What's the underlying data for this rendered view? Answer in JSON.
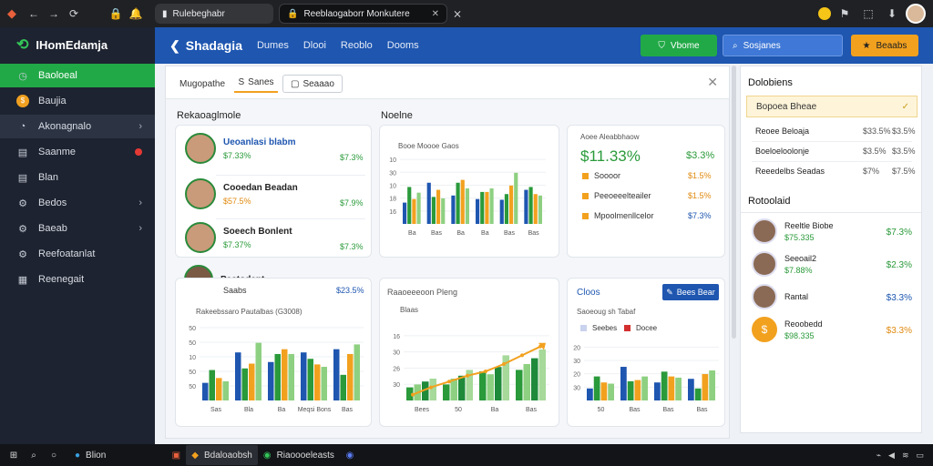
{
  "browser": {
    "tab1_title": "Rulebeghabr",
    "tab2_title": "Reeblaogaborr Monkutere",
    "icons": [
      "back-arrow-icon",
      "forward-arrow-icon",
      "refresh-icon",
      "lock-icon",
      "notification-icon",
      "extension-icon",
      "profile-icon"
    ]
  },
  "sidebar": {
    "brand": "IHomEdamja",
    "items": [
      {
        "label": "Baoloeal",
        "icon": "clock-icon",
        "active": true
      },
      {
        "label": "Baujia",
        "icon": "coin-icon"
      },
      {
        "label": "Akonagnalo",
        "icon": "chart-icon",
        "chevron": true
      },
      {
        "label": "Saanme",
        "icon": "doc-icon",
        "badge": true
      },
      {
        "label": "Blan",
        "icon": "doc-icon"
      },
      {
        "label": "Bedos",
        "icon": "gear-icon",
        "chevron": true
      },
      {
        "label": "Baeab",
        "icon": "gear-icon",
        "chevron": true
      },
      {
        "label": "Reefoatanlat",
        "icon": "gear-icon"
      },
      {
        "label": "Reenegait",
        "icon": "grid-icon"
      }
    ]
  },
  "appbar": {
    "title": "Shadagia",
    "nav": [
      "Dumes",
      "Dlooi",
      "Reoblo",
      "Dooms"
    ],
    "green_button": "Vbome",
    "blue_button": "Sosjanes",
    "orange_button": "Beaabs"
  },
  "filters": {
    "chip1": "Mugopathe",
    "chip2": "Sanes",
    "chip3": "Seaaao"
  },
  "sections": {
    "left_title": "Rekaoaglmole",
    "mid_title": "Noelne"
  },
  "people_card": [
    {
      "name": "Ueoanlasi blabm",
      "sub": "$7.33%",
      "value": "$7.3%"
    },
    {
      "name": "Cooedan Beadan",
      "sub": "$57.5%",
      "value": "$7.9%"
    },
    {
      "name": "Soeech Bonlent",
      "sub": "$7.37%",
      "value": "$7.3%"
    }
  ],
  "bar_card_top": {
    "caption": "Booe Moooe Gaos",
    "ylabels": [
      "16",
      "18",
      "10",
      "30",
      "10"
    ],
    "xlabels": [
      "Ba",
      "Bas",
      "Ba",
      "Ba",
      "Bas",
      "Bas"
    ]
  },
  "stat_card": {
    "caption": "Aoee Aleabbhaow",
    "headline": "$11.33%",
    "headline_side": "$3.3%",
    "rows": [
      {
        "label": "Soooor",
        "value": "$1.5%",
        "color": "#f2a11f"
      },
      {
        "label": "Peeoeeelteailer",
        "value": "$1.5%",
        "color": "#f2a11f"
      },
      {
        "label": "Mpoolmenllcelor",
        "value": "$7.3%",
        "color": "#f2a11f"
      }
    ]
  },
  "bottom_left": {
    "person_name": "Peatodent",
    "person_sub": "Saabs",
    "person_value": "$23.5%",
    "caption": "Rakeebssaro Pautalbas (G3008)",
    "ylabels": [
      "50",
      "50",
      "10",
      "50",
      "50"
    ],
    "xlabels": [
      "Sas",
      "Bla",
      "Ba",
      "Meqsi Bons",
      "Bas"
    ]
  },
  "bottom_mid": {
    "caption": "Raaoeeeoon Pleng",
    "sub": "Blaas",
    "ylabels": [
      "30",
      "26",
      "30",
      "16"
    ],
    "xlabels": [
      "Bees",
      "50",
      "Ba",
      "Bas"
    ]
  },
  "bottom_right": {
    "caption": "Cloos",
    "button": "Bees Bear",
    "sub": "Saoeoug sh Tabaf",
    "legend": [
      "Seebes",
      "Docee"
    ],
    "ylabels": [
      "30",
      "20",
      "30",
      "20"
    ],
    "xlabels": [
      "50",
      "Bas",
      "Bas",
      "Bas"
    ]
  },
  "right_panel": {
    "title": "Dolobiens",
    "highlight": "Bopoea Bheae",
    "rows": [
      {
        "label": "Reoee Beloaja",
        "a": "$33.5%",
        "b": "$3.5%"
      },
      {
        "label": "Boeloeloolonje",
        "a": "$3.5%",
        "b": "$3.5%"
      },
      {
        "label": "Reeedelbs Seadas",
        "a": "$7%",
        "b": "$7.5%"
      }
    ],
    "people_title": "Rotoolaid",
    "people": [
      {
        "name": "Reeltle Biobe",
        "sub": "$75.335",
        "value": "$7.3%",
        "color": "#2a9a3a"
      },
      {
        "name": "Seeoail2",
        "sub": "$7.88%",
        "value": "$2.3%",
        "color": "#2a9a3a"
      },
      {
        "name": "Rantal",
        "sub": "",
        "value": "$3.3%",
        "color": "#1e56b0"
      },
      {
        "name": "Reoobedd",
        "sub": "$98.335",
        "value": "$3.3%",
        "color": "#e08a10"
      }
    ]
  },
  "taskbar": {
    "item1": "Blion",
    "item2": "Bdaloaobsh",
    "item3": "Riaoooeleasts"
  },
  "chart_data": [
    {
      "type": "bar",
      "title": "Booe Moooe Gaos",
      "categories": [
        "Ba",
        "Bas",
        "Ba",
        "Ba",
        "Bas",
        "Bas"
      ],
      "ylim": [
        0,
        100
      ],
      "series": [
        {
          "values": [
            30,
            58,
            40,
            35,
            34,
            48
          ]
        },
        {
          "values": [
            52,
            38,
            58,
            45,
            42,
            52
          ]
        },
        {
          "values": [
            35,
            48,
            62,
            45,
            54,
            42
          ]
        },
        {
          "values": [
            44,
            36,
            50,
            50,
            72,
            40
          ]
        }
      ],
      "colors": [
        "#1e56b0",
        "#2a9a3a",
        "#f2a11f",
        "#8ed081"
      ]
    },
    {
      "type": "bar",
      "title": "Rakeebssaro Pautalbas (G3008)",
      "categories": [
        "Sas",
        "Bla",
        "Ba",
        "Meqsi Bons",
        "Bas"
      ],
      "ylim": [
        0,
        100
      ],
      "series": [
        {
          "values": [
            22,
            60,
            48,
            60,
            64
          ]
        },
        {
          "values": [
            38,
            40,
            58,
            52,
            32
          ]
        },
        {
          "values": [
            28,
            46,
            64,
            45,
            58
          ]
        },
        {
          "values": [
            24,
            72,
            58,
            42,
            70
          ]
        }
      ],
      "colors": [
        "#1e56b0",
        "#2a9a3a",
        "#f2a11f",
        "#8ed081"
      ]
    },
    {
      "type": "bar",
      "title": "Raaoeeeoon Pleng",
      "categories": [
        "Bees",
        "50",
        "Ba",
        "Bas"
      ],
      "ylim": [
        0,
        100
      ],
      "series": [
        {
          "values": [
            18,
            22,
            40,
            42
          ]
        },
        {
          "values": [
            22,
            30,
            36,
            50
          ]
        },
        {
          "values": [
            26,
            34,
            46,
            58
          ]
        },
        {
          "values": [
            30,
            42,
            62,
            70
          ]
        }
      ],
      "line": [
        8,
        18,
        26,
        34,
        40,
        50,
        62,
        74
      ],
      "colors": [
        "#2a9a3a",
        "#8ed081",
        "#1e8a3a",
        "#a6d99a"
      ],
      "line_color": "#f2a11f"
    },
    {
      "type": "bar",
      "title": "Cloos",
      "categories": [
        "50",
        "Bas",
        "Bas",
        "Bas"
      ],
      "ylim": [
        0,
        100
      ],
      "series": [
        {
          "name": "Seebes",
          "values": [
            20,
            56,
            30,
            36
          ]
        },
        {
          "name": "Docee",
          "values": [
            40,
            32,
            48,
            20
          ]
        },
        {
          "values": [
            30,
            34,
            40,
            44
          ]
        },
        {
          "values": [
            28,
            40,
            38,
            50
          ]
        }
      ],
      "colors": [
        "#1e56b0",
        "#2a9a3a",
        "#f2a11f",
        "#8ed081"
      ]
    }
  ]
}
